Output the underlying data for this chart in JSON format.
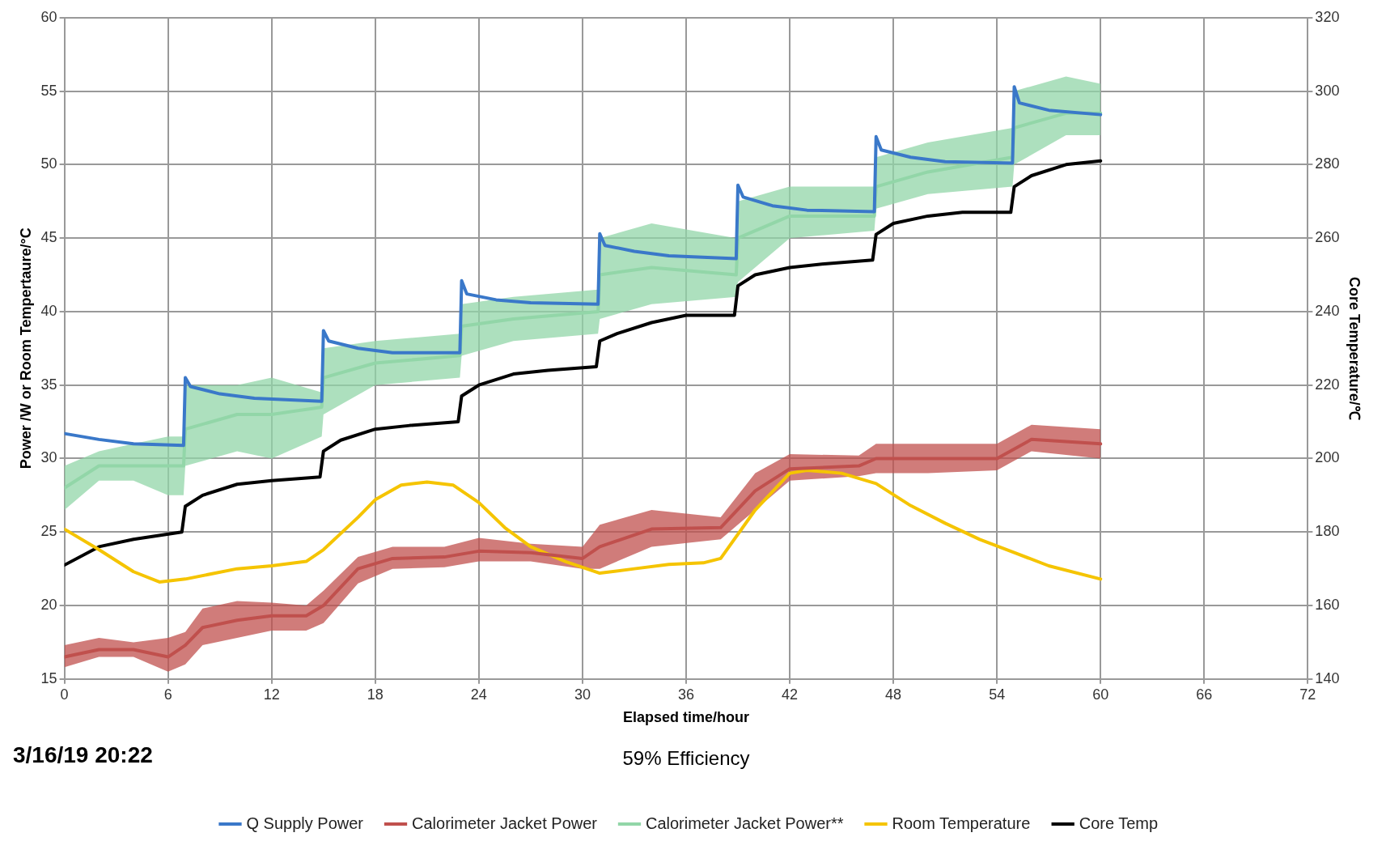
{
  "chart_data": {
    "type": "line",
    "xlabel": "Elapsed time/hour",
    "ylabel": "Power /W or Room Tempertaure/°C",
    "y2label": "Core Temperature/℃",
    "annotations": [
      "3/16/19 20:22",
      "59% Efficiency"
    ],
    "xlim": [
      0,
      72
    ],
    "xticks": [
      0,
      6,
      12,
      18,
      24,
      30,
      36,
      42,
      48,
      54,
      60,
      66,
      72
    ],
    "ylim": [
      15,
      60
    ],
    "yticks": [
      15,
      20,
      25,
      30,
      35,
      40,
      45,
      50,
      55,
      60
    ],
    "y2lim": [
      140,
      320
    ],
    "y2ticks": [
      140,
      160,
      180,
      200,
      220,
      240,
      260,
      280,
      300,
      320
    ],
    "grid": true,
    "legend": "bottom",
    "marker": "none",
    "line_style": "solid",
    "series": [
      {
        "name": "Q Supply Power",
        "color": "#3a78c9",
        "x": [
          0,
          2,
          4,
          6.9,
          7,
          7.3,
          9,
          11,
          14.9,
          15,
          15.3,
          17,
          19,
          22.9,
          23,
          23.3,
          25,
          27,
          30.9,
          31,
          31.3,
          33,
          35,
          38.9,
          39,
          39.3,
          41,
          43,
          46.9,
          47,
          47.3,
          49,
          51,
          54.9,
          55,
          55.3,
          57,
          60
        ],
        "values": [
          31.7,
          31.3,
          31.0,
          30.9,
          35.5,
          34.9,
          34.4,
          34.1,
          33.9,
          38.7,
          38.0,
          37.5,
          37.2,
          37.2,
          42.1,
          41.2,
          40.8,
          40.6,
          40.5,
          45.3,
          44.5,
          44.1,
          43.8,
          43.6,
          48.6,
          47.8,
          47.2,
          46.9,
          46.8,
          51.9,
          51.0,
          50.5,
          50.2,
          50.1,
          55.3,
          54.2,
          53.7,
          53.4
        ]
      },
      {
        "name": "Calorimeter Jacket Power",
        "color": "#c0504d",
        "x": [
          0,
          2,
          4,
          6,
          7,
          8,
          10,
          12,
          14,
          15,
          17,
          19,
          22,
          24,
          27,
          30,
          31,
          34,
          38,
          40,
          42,
          46,
          47,
          50,
          54,
          56,
          60
        ],
        "values": [
          16.5,
          17,
          17,
          16.5,
          17.3,
          18.5,
          19,
          19.3,
          19.3,
          20,
          22.5,
          23.2,
          23.3,
          23.7,
          23.6,
          23.2,
          24,
          25.2,
          25.3,
          27.8,
          29.3,
          29.5,
          30,
          30,
          30,
          31.3,
          31
        ],
        "lower": [
          15.8,
          16.5,
          16.5,
          15.5,
          16,
          17.3,
          17.8,
          18.3,
          18.3,
          18.8,
          21.5,
          22.5,
          22.6,
          23,
          23,
          22.5,
          22.5,
          24,
          24.5,
          26.5,
          28.5,
          28.8,
          29,
          29,
          29.2,
          30.5,
          30
        ],
        "upper": [
          17.3,
          17.8,
          17.5,
          17.8,
          18.2,
          19.8,
          20.3,
          20.2,
          20,
          21,
          23.3,
          24,
          24,
          24.6,
          24.2,
          24,
          25.5,
          26.5,
          26,
          29,
          30.3,
          30.2,
          31,
          31,
          31,
          32.3,
          32
        ]
      },
      {
        "name": "Calorimeter Jacket Power**",
        "color": "#92d6a8",
        "x": [
          0,
          2,
          4,
          6,
          6.9,
          7,
          10,
          12,
          14.9,
          15,
          18,
          22.9,
          23,
          26,
          30.9,
          31,
          34,
          38.9,
          39,
          42,
          46.9,
          47,
          50,
          54.9,
          55,
          58,
          60
        ],
        "values": [
          28,
          29.5,
          29.5,
          29.5,
          29.5,
          32,
          33,
          33,
          33.5,
          35.5,
          36.5,
          37,
          39,
          39.5,
          40,
          42.5,
          43,
          42.5,
          45,
          46.5,
          46.5,
          48.5,
          49.5,
          50.5,
          52.5,
          53.5,
          53.5
        ],
        "lower": [
          26.5,
          28.5,
          28.5,
          27.5,
          27.5,
          29.5,
          30.5,
          30,
          31.5,
          33,
          35,
          35.5,
          37,
          38,
          38.5,
          39.5,
          40.5,
          41,
          42,
          45,
          45.5,
          47,
          48,
          48.5,
          50,
          52,
          52
        ],
        "upper": [
          29.5,
          30.5,
          31,
          31.5,
          31.5,
          35,
          35,
          35.5,
          34.5,
          37.5,
          38,
          38.5,
          40.5,
          41,
          41.5,
          45,
          46,
          45,
          47.5,
          48.5,
          48.5,
          50.5,
          51.5,
          52.5,
          55,
          56,
          55.5
        ]
      },
      {
        "name": "Room Temperature",
        "color": "#f5c400",
        "x": [
          0,
          2,
          4,
          5.5,
          7,
          10,
          12,
          14,
          15,
          17,
          18,
          19.5,
          21,
          22.5,
          24,
          25.5,
          27,
          29,
          31,
          33,
          35,
          37,
          38,
          40,
          42,
          43,
          45,
          47,
          49,
          51,
          53,
          55,
          57,
          60
        ],
        "values": [
          25.2,
          23.8,
          22.3,
          21.6,
          21.8,
          22.5,
          22.7,
          23,
          23.8,
          26,
          27.2,
          28.2,
          28.4,
          28.2,
          27,
          25.3,
          24,
          23,
          22.2,
          22.5,
          22.8,
          22.9,
          23.2,
          26.5,
          29,
          29.2,
          29,
          28.3,
          26.8,
          25.6,
          24.5,
          23.6,
          22.7,
          21.8
        ]
      },
      {
        "name": "Core Temp",
        "color": "#000000",
        "axis": "y2",
        "x": [
          0,
          2,
          4,
          6.8,
          7,
          8,
          10,
          12,
          14.8,
          15,
          16,
          18,
          20,
          22.8,
          23,
          24,
          26,
          28,
          30.8,
          31,
          32,
          34,
          36,
          38.8,
          39,
          40,
          42,
          44,
          46.8,
          47,
          48,
          50,
          52,
          54.8,
          55,
          56,
          58,
          60
        ],
        "values": [
          171,
          176,
          178,
          180,
          187,
          190,
          193,
          194,
          195,
          202,
          205,
          208,
          209,
          210,
          217,
          220,
          223,
          224,
          225,
          232,
          234,
          237,
          239,
          239,
          247,
          250,
          252,
          253,
          254,
          261,
          264,
          266,
          267,
          267,
          274,
          277,
          280,
          281
        ]
      }
    ]
  }
}
